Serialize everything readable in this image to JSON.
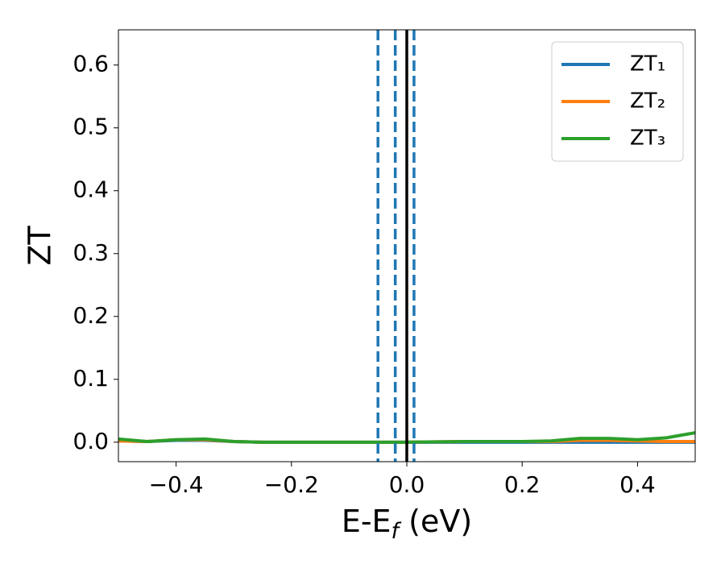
{
  "chart_data": {
    "type": "line",
    "xlabel": [
      "E-E",
      "f",
      " (eV)"
    ],
    "ylabel": "ZT",
    "x": [
      -0.5,
      -0.45,
      -0.4,
      -0.35,
      -0.3,
      -0.25,
      -0.2,
      -0.1,
      0,
      0.1,
      0.2,
      0.25,
      0.3,
      0.35,
      0.4,
      0.45,
      0.5
    ],
    "series": [
      {
        "name": "ZT₁",
        "color": "#1f77b4",
        "values": [
          0.002,
          0.001,
          0.003,
          0.003,
          0.001,
          0,
          0,
          0,
          0,
          0,
          0,
          0,
          0,
          0,
          0,
          0,
          0
        ]
      },
      {
        "name": "ZT₂",
        "color": "#ff7f0e",
        "values": [
          0.002,
          0.001,
          0.004,
          0.004,
          0.001,
          0,
          0,
          0,
          0,
          0.001,
          0.001,
          0.001,
          0.003,
          0.003,
          0.002,
          0.001,
          0.001
        ]
      },
      {
        "name": "ZT₃",
        "color": "#2ca02c",
        "values": [
          0.005,
          0.001,
          0.004,
          0.005,
          0.001,
          0,
          0,
          0,
          0,
          0.001,
          0.001,
          0.002,
          0.006,
          0.006,
          0.004,
          0.007,
          0.015
        ]
      }
    ],
    "vlines": [
      {
        "x": -0.05,
        "color": "#1f77b4",
        "dashed": true
      },
      {
        "x": -0.02,
        "color": "#1f77b4",
        "dashed": true
      },
      {
        "x": 0.0125,
        "color": "#1f77b4",
        "dashed": true
      },
      {
        "x": 0,
        "color": "#000000",
        "dashed": false
      }
    ],
    "xlim": [
      -0.5,
      0.5
    ],
    "ylim": [
      -0.031,
      0.656
    ],
    "xticks": [
      {
        "value": -0.4,
        "label": "−0.4"
      },
      {
        "value": -0.2,
        "label": "−0.2"
      },
      {
        "value": 0,
        "label": "0.0"
      },
      {
        "value": 0.2,
        "label": "0.2"
      },
      {
        "value": 0.4,
        "label": "0.4"
      }
    ],
    "yticks": [
      {
        "value": 0,
        "label": "0.0"
      },
      {
        "value": 0.1,
        "label": "0.1"
      },
      {
        "value": 0.2,
        "label": "0.2"
      },
      {
        "value": 0.3,
        "label": "0.3"
      },
      {
        "value": 0.4,
        "label": "0.4"
      },
      {
        "value": 0.5,
        "label": "0.5"
      },
      {
        "value": 0.6,
        "label": "0.6"
      }
    ],
    "legend": "upper right"
  }
}
